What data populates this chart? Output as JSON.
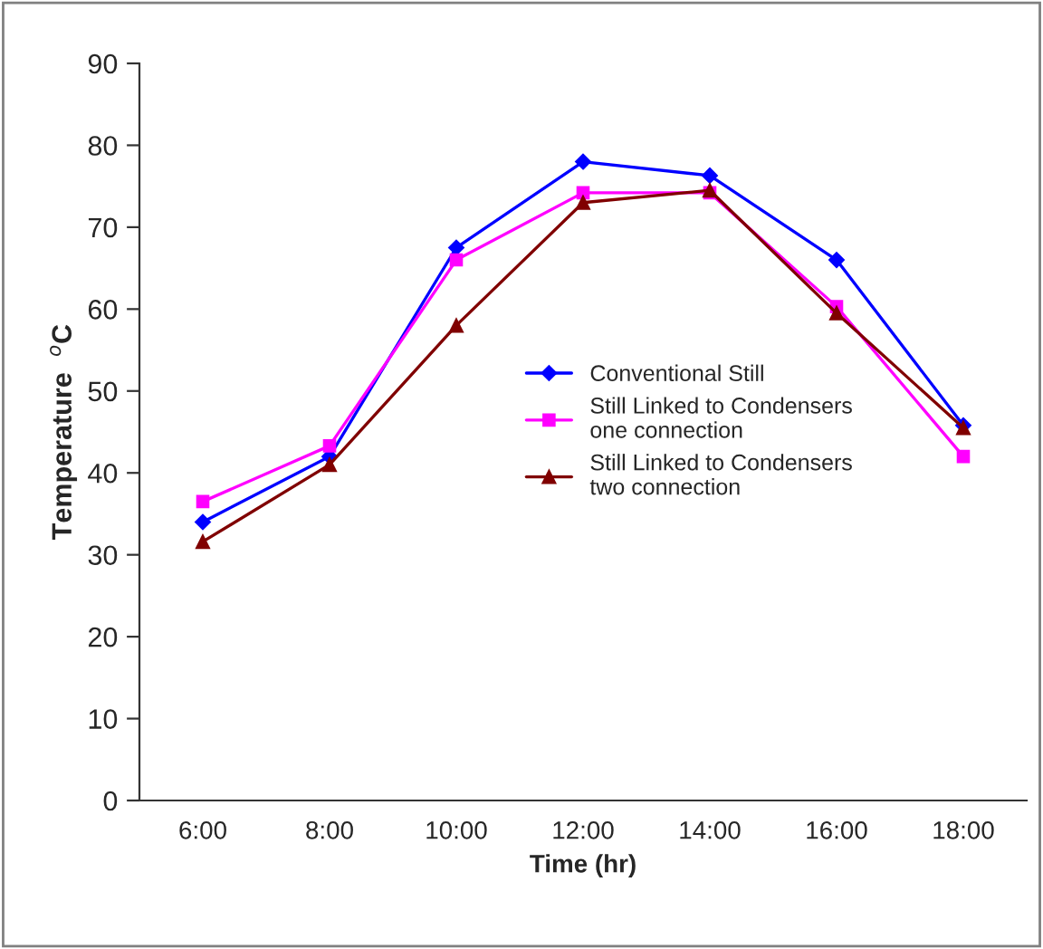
{
  "chart_data": {
    "type": "line",
    "xlabel": "Time (hr)",
    "ylabel": "Temperature  $^{o}$C",
    "categories": [
      "6:00",
      "8:00",
      "10:00",
      "12:00",
      "14:00",
      "16:00",
      "18:00"
    ],
    "series": [
      {
        "name": "Conventional Still",
        "color": "#0000ff",
        "marker": "diamond",
        "values": [
          34,
          42,
          67.5,
          78,
          76.3,
          66,
          45.8
        ]
      },
      {
        "name": "Still Linked to Condensers\none connection",
        "color": "#ff00ff",
        "marker": "square",
        "values": [
          36.5,
          43.3,
          66,
          74.2,
          74.2,
          60.3,
          42
        ]
      },
      {
        "name": "Still Linked to Condensers\ntwo connection",
        "color": "#800000",
        "marker": "triangle",
        "values": [
          31.6,
          41,
          58,
          73,
          74.5,
          59.5,
          45.5
        ]
      }
    ],
    "ylim": [
      0,
      90
    ],
    "yticks": [
      0,
      10,
      20,
      30,
      40,
      50,
      60,
      70,
      80,
      90
    ],
    "grid": false,
    "legend": "center",
    "line_style": "solid"
  }
}
